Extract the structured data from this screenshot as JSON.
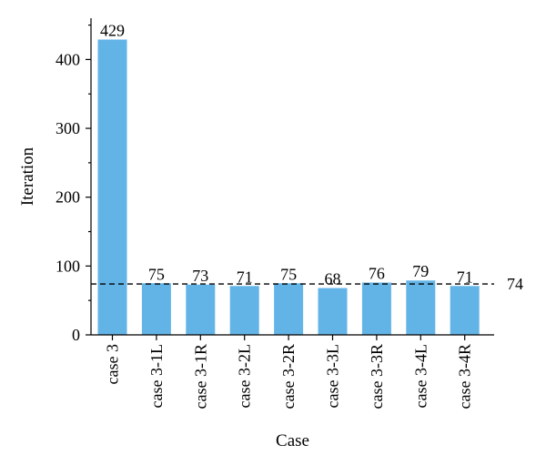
{
  "chart_data": {
    "type": "bar",
    "xlabel": "Case",
    "ylabel": "Iteration",
    "categories": [
      "case 3",
      "case 3-1L",
      "case 3-1R",
      "case 3-2L",
      "case 3-2R",
      "case 3-3L",
      "case 3-3R",
      "case 3-4L",
      "case 3-4R"
    ],
    "values": [
      429,
      75,
      73,
      71,
      75,
      68,
      76,
      79,
      71
    ],
    "data_labels": [
      "429",
      "75",
      "73",
      "71",
      "75",
      "68",
      "76",
      "79",
      "71"
    ],
    "ylim": [
      0,
      460
    ],
    "yticks": [
      0,
      100,
      200,
      300,
      400
    ],
    "ytick_labels": [
      "0",
      "100",
      "200",
      "300",
      "400"
    ],
    "reference_line": {
      "value": 74,
      "label": "74",
      "style": "dashed"
    },
    "grid": false,
    "bar_color": "#63b4e6"
  }
}
